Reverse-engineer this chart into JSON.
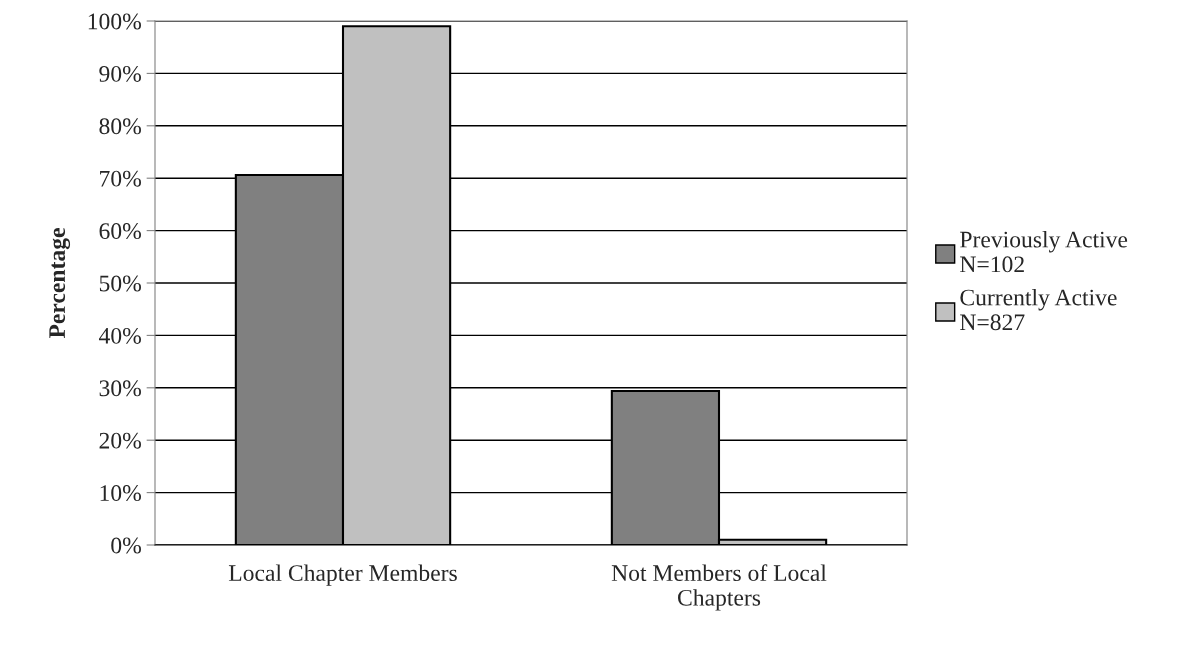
{
  "chart_data": {
    "type": "bar",
    "ylabel": "Percentage",
    "categories": [
      "Local Chapter Members",
      "Not Members of Local\nChapters"
    ],
    "series": [
      {
        "name": "Previously Active\nN=102",
        "color": "#808080",
        "values": [
          70.6,
          29.4
        ]
      },
      {
        "name": "Currently Active\nN=827",
        "color": "#c0c0c0",
        "values": [
          99.0,
          1.0
        ]
      }
    ],
    "ylim": [
      0,
      100
    ],
    "yticks": [
      {
        "value": 0,
        "label": "0%"
      },
      {
        "value": 10,
        "label": "10%"
      },
      {
        "value": 20,
        "label": "20%"
      },
      {
        "value": 30,
        "label": "30%"
      },
      {
        "value": 40,
        "label": "40%"
      },
      {
        "value": 50,
        "label": "50%"
      },
      {
        "value": 60,
        "label": "60%"
      },
      {
        "value": 70,
        "label": "70%"
      },
      {
        "value": 80,
        "label": "80%"
      },
      {
        "value": 90,
        "label": "90%"
      },
      {
        "value": 100,
        "label": "100%"
      }
    ],
    "grid": "y",
    "legend": "right"
  }
}
